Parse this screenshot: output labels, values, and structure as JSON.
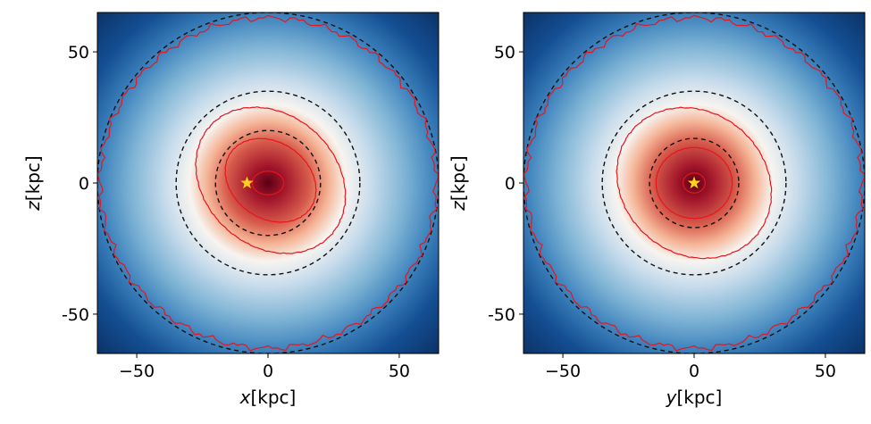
{
  "chart_data": [
    {
      "type": "heatmap",
      "description_kind": "density map with contours",
      "xlabel_var": "x",
      "xlabel_unit": "[kpc]",
      "ylabel_var": "z",
      "ylabel_unit": "[kpc]",
      "xlim": [
        -65,
        65
      ],
      "ylim": [
        -65,
        65
      ],
      "xticks": [
        {
          "value": -50,
          "label": "−50"
        },
        {
          "value": 0,
          "label": "0"
        },
        {
          "value": 50,
          "label": "50"
        }
      ],
      "yticks": [
        {
          "value": 50,
          "label": "50"
        },
        {
          "value": 0,
          "label": "0"
        },
        {
          "value": -50,
          "label": "-50"
        }
      ],
      "grid": false,
      "colormap": "RdBu_r",
      "dashed_circles_kpc": [
        20,
        35,
        65
      ],
      "contour_color": "#e8141e",
      "contours": [
        {
          "cx": 0,
          "cy": 0,
          "rx": 6,
          "ry": 4.5,
          "angle_deg": 0
        },
        {
          "cx": 1,
          "cy": 1,
          "rx": 18.5,
          "ry": 14.5,
          "angle_deg": -35
        },
        {
          "cx": 1,
          "cy": 1,
          "rx": 31,
          "ry": 25,
          "angle_deg": -42
        },
        {
          "cx": 0,
          "cy": 0,
          "rx": 64,
          "ry": 63,
          "angle_deg": 0
        }
      ],
      "marker": {
        "symbol": "star",
        "x": -8,
        "y": 0,
        "color": "#ffd21c"
      }
    },
    {
      "type": "heatmap",
      "description_kind": "density map with contours",
      "xlabel_var": "y",
      "xlabel_unit": "[kpc]",
      "ylabel_var": "z",
      "ylabel_unit": "[kpc]",
      "xlim": [
        -65,
        65
      ],
      "ylim": [
        -65,
        65
      ],
      "xticks": [
        {
          "value": -50,
          "label": "−50"
        },
        {
          "value": 0,
          "label": "0"
        },
        {
          "value": 50,
          "label": "50"
        }
      ],
      "yticks": [
        {
          "value": 50,
          "label": "50"
        },
        {
          "value": 0,
          "label": "0"
        },
        {
          "value": -50,
          "label": "-50"
        }
      ],
      "grid": false,
      "colormap": "RdBu_r",
      "dashed_circles_kpc": [
        17,
        35,
        65
      ],
      "contour_color": "#e8141e",
      "contours": [
        {
          "cx": 0,
          "cy": 0,
          "rx": 4.2,
          "ry": 3.8,
          "angle_deg": 0
        },
        {
          "cx": 0,
          "cy": 0,
          "rx": 14.5,
          "ry": 13.5,
          "angle_deg": 0
        },
        {
          "cx": 0,
          "cy": 0,
          "rx": 31,
          "ry": 27,
          "angle_deg": -40
        },
        {
          "cx": 0,
          "cy": 0,
          "rx": 64,
          "ry": 63,
          "angle_deg": 0
        }
      ],
      "marker": {
        "symbol": "star",
        "x": 0,
        "y": 0,
        "color": "#ffd21c"
      }
    }
  ]
}
